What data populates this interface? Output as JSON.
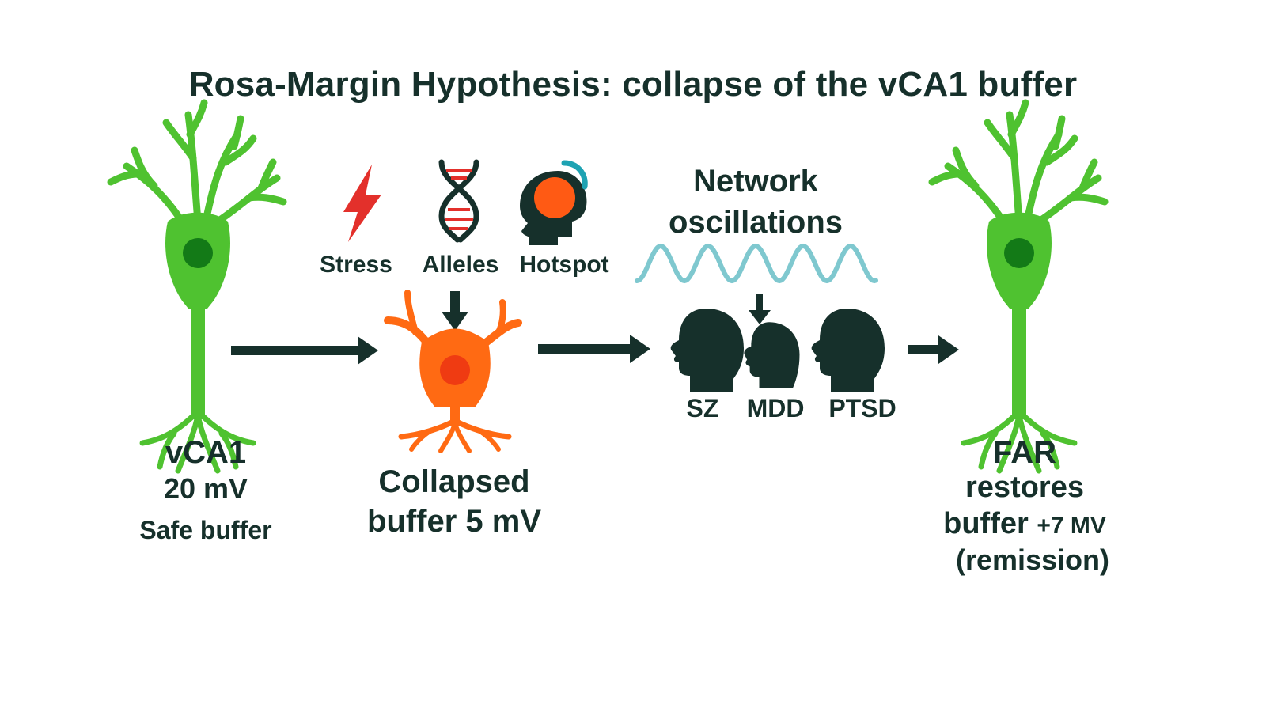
{
  "title": "Rosa-Margin Hypothesis: collapse of the vCA1 buffer",
  "colors": {
    "healthy_neuron": "#4fc230",
    "nucleus": "#137a17",
    "collapsed_neuron": "#ff6a13",
    "collapsed_nucleus": "#ef3b12",
    "stress_bolt": "#e3302b",
    "wave": "#7fc8cf",
    "dark": "#16302b",
    "accent_teal": "#1ea3b3"
  },
  "icons": [
    "neuron-icon",
    "lightning-icon",
    "dna-icon",
    "brain-head-icon",
    "wave-icon",
    "head-icon"
  ],
  "left_neuron": {
    "name": "vCA1",
    "value": "20 mV",
    "caption": "Safe buffer"
  },
  "factors": [
    {
      "label": "Stress",
      "icon": "lightning-icon"
    },
    {
      "label": "Alleles",
      "icon": "dna-icon"
    },
    {
      "label": "Hotspot",
      "icon": "brain-head-icon"
    }
  ],
  "collapsed": {
    "line1": "Collapsed",
    "line2": "buffer 5 mV"
  },
  "network": {
    "line1": "Network",
    "line2": "oscillations"
  },
  "disorders": [
    {
      "label": "SZ"
    },
    {
      "label": "MDD"
    },
    {
      "label": "PTSD"
    }
  ],
  "far": {
    "line1": "FAR",
    "line2": "restores",
    "line3_main": "buffer ",
    "line3_value": "+7 MV",
    "line4": "(remission)"
  }
}
